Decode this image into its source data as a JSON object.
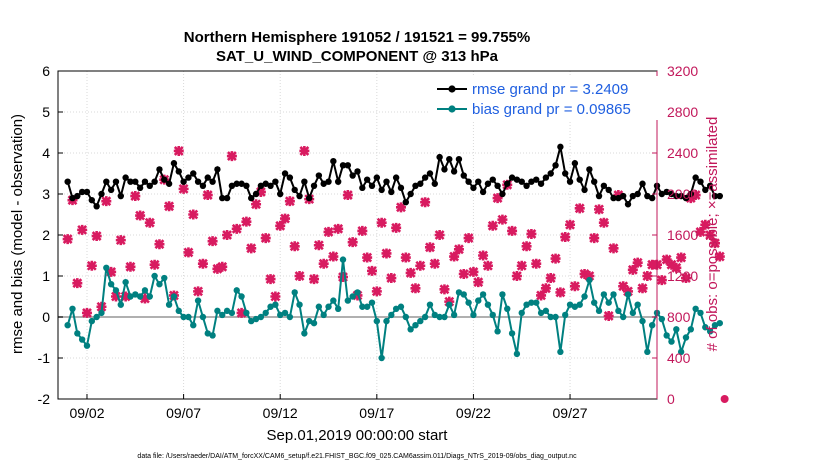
{
  "chart_data": {
    "type": "line",
    "title_line1": "Northern Hemisphere 191052 / 191521 = 99.755%",
    "title_line2": "SAT_U_WIND_COMPONENT @ 313 hPa",
    "ylabel_left": "rmse and bias (model - observation)",
    "ylabel_right": "# of obs: o=possible; ×=assimilated",
    "xlabel": "Sep.01,2019 00:00:00 start",
    "data_file": "data file: /Users/raeder/DAI/ATM_forcXX/CAM6_setup/f.e21.FHIST_BGC.f09_025.CAM6assim.011/Diags_NTrS_2019-09/obs_diag_output.nc",
    "ylim_left": [
      -2,
      6
    ],
    "ylim_right": [
      0,
      3200
    ],
    "xlim_days": [
      0.5,
      31.5
    ],
    "yticks_left": [
      "-2",
      "-1",
      "0",
      "1",
      "2",
      "3",
      "4",
      "5",
      "6"
    ],
    "yticks_right": [
      "0",
      "400",
      "800",
      "1200",
      "1600",
      "2000",
      "2400",
      "2800",
      "3200"
    ],
    "xticks": [
      {
        "day": 2,
        "label": "09/02"
      },
      {
        "day": 7,
        "label": "09/07"
      },
      {
        "day": 12,
        "label": "09/12"
      },
      {
        "day": 17,
        "label": "09/17"
      },
      {
        "day": 22,
        "label": "09/22"
      },
      {
        "day": 27,
        "label": "09/27"
      }
    ],
    "x_start_day": 1,
    "x_step_days": 0.25,
    "series": [
      {
        "name": "rmse",
        "legend": "rmse grand pr = 3.2409",
        "color": "#000000",
        "values": [
          3.3,
          2.9,
          2.95,
          3.05,
          3.05,
          2.85,
          2.7,
          3.0,
          3.3,
          3.1,
          3.3,
          2.95,
          3.4,
          3.3,
          3.3,
          3.15,
          3.3,
          3.2,
          3.3,
          3.6,
          3.35,
          3.25,
          3.75,
          3.55,
          3.3,
          3.4,
          3.5,
          3.3,
          3.2,
          3.4,
          3.3,
          3.6,
          2.9,
          2.9,
          3.2,
          3.25,
          3.25,
          3.2,
          2.9,
          3.0,
          3.2,
          3.25,
          3.2,
          3.3,
          3.0,
          3.5,
          3.4,
          3.1,
          2.95,
          3.3,
          2.9,
          3.2,
          3.45,
          3.25,
          3.3,
          3.8,
          3.3,
          3.7,
          3.7,
          3.45,
          3.55,
          3.15,
          3.35,
          3.2,
          3.4,
          3.1,
          3.3,
          3.05,
          3.4,
          3.15,
          2.8,
          3.0,
          3.2,
          3.25,
          3.4,
          3.5,
          3.25,
          3.9,
          3.6,
          3.85,
          3.55,
          3.85,
          3.45,
          3.3,
          3.15,
          3.3,
          3.05,
          3.25,
          3.35,
          3.2,
          3.0,
          3.25,
          3.4,
          3.35,
          3.3,
          3.2,
          3.3,
          3.35,
          3.25,
          3.4,
          3.5,
          3.7,
          4.15,
          3.5,
          3.3,
          3.75,
          3.35,
          3.1,
          3.6,
          3.3,
          2.95,
          3.2,
          3.1,
          2.9,
          2.9,
          2.95,
          2.75,
          2.95,
          3.0,
          3.25,
          2.95,
          2.9,
          3.2,
          3.0,
          3.05,
          3.0,
          2.95,
          2.95,
          2.9,
          3.0,
          3.4,
          3.3,
          3.1,
          3.2,
          2.95,
          2.95
        ]
      },
      {
        "name": "bias",
        "legend": "bias grand pr = 0.09865",
        "color": "#008080",
        "values": [
          -0.2,
          0.2,
          -0.4,
          -0.55,
          -0.7,
          -0.1,
          0.0,
          0.1,
          1.2,
          0.8,
          0.65,
          0.3,
          0.85,
          0.5,
          0.55,
          0.5,
          0.65,
          0.5,
          1.0,
          0.8,
          0.95,
          0.3,
          0.5,
          0.15,
          0.0,
          0.0,
          -0.2,
          0.4,
          0.0,
          -0.4,
          -0.45,
          0.15,
          0.05,
          0.15,
          0.1,
          0.65,
          0.5,
          0.1,
          -0.1,
          -0.05,
          0.0,
          0.1,
          0.25,
          0.3,
          0.05,
          0.1,
          0.0,
          0.6,
          0.3,
          -0.4,
          -0.1,
          -0.15,
          0.25,
          0.05,
          0.25,
          0.4,
          0.2,
          1.4,
          0.4,
          0.5,
          0.6,
          0.25,
          0.25,
          0.35,
          -0.1,
          -1.0,
          -0.1,
          0.05,
          0.2,
          0.25,
          0.0,
          -0.3,
          -0.2,
          -0.1,
          0.0,
          0.3,
          0.05,
          0.0,
          0.0,
          0.3,
          0.05,
          0.6,
          0.55,
          0.35,
          0.05,
          0.4,
          0.55,
          0.3,
          0.05,
          -0.35,
          0.55,
          0.2,
          -0.4,
          -0.9,
          0.1,
          0.3,
          0.35,
          0.35,
          0.1,
          0.15,
          0.0,
          0.0,
          -0.85,
          0.05,
          0.3,
          0.25,
          0.3,
          0.5,
          0.9,
          0.35,
          0.15,
          0.55,
          0.35,
          0.55,
          0.15,
          0.0,
          0.55,
          0.1,
          0.3,
          -0.1,
          -0.85,
          -0.2,
          0.1,
          -0.05,
          -0.45,
          -0.6,
          -0.3,
          -0.85,
          -0.5,
          -0.3,
          0.2,
          0.1,
          -0.25,
          -0.35,
          -0.2,
          -0.15
        ]
      }
    ],
    "obs_counts": {
      "name": "# of obs",
      "marker": "×",
      "color": "#d81b60",
      "values": [
        1560,
        1940,
        1130,
        1650,
        840,
        1300,
        1590,
        900,
        1930,
        1240,
        1000,
        1550,
        1000,
        1290,
        1980,
        1790,
        980,
        1720,
        1310,
        1510,
        2140,
        1880,
        1010,
        2420,
        2050,
        1430,
        1800,
        1050,
        1320,
        1990,
        1540,
        1270,
        1290,
        1600,
        2370,
        1660,
        840,
        1730,
        1470,
        1900,
        2020,
        1570,
        1170,
        1000,
        1690,
        1760,
        1930,
        1490,
        1200,
        2420,
        1950,
        1170,
        1500,
        1320,
        1630,
        1390,
        1660,
        1190,
        1990,
        1530,
        1010,
        1640,
        1380,
        1250,
        1050,
        1720,
        1420,
        1180,
        1670,
        1870,
        1380,
        1230,
        1080,
        1300,
        1920,
        1480,
        1320,
        1600,
        1070,
        950,
        1390,
        1460,
        1220,
        1570,
        1240,
        1140,
        1400,
        1300,
        1690,
        1960,
        1750,
        2090,
        1640,
        1200,
        1300,
        1490,
        1610,
        1320,
        1010,
        1080,
        1180,
        1370,
        1040,
        1580,
        1700,
        1100,
        1860,
        1220,
        1200,
        1570,
        1850,
        1720,
        810,
        1470,
        1990,
        1100,
        1050,
        1260,
        1330,
        1080,
        1200,
        1310,
        1310,
        1160,
        1360,
        1310,
        1280,
        1380,
        1180,
        1960,
        1990,
        1630,
        1700,
        1600,
        1520,
        1390,
        0
      ]
    }
  }
}
